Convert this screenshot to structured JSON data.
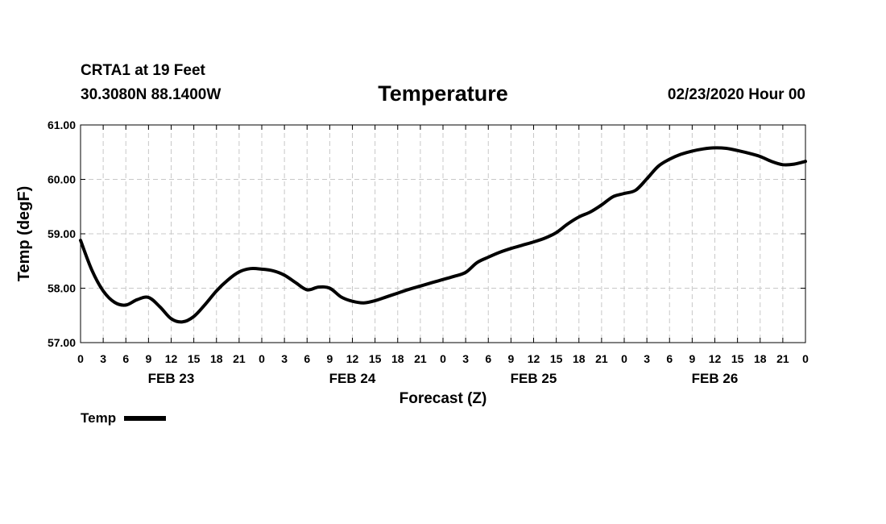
{
  "header": {
    "station": "CRTA1 at 19 Feet",
    "location": "30.3080N 88.1400W",
    "title": "Temperature",
    "run_time": "02/23/2020 Hour 00"
  },
  "chart_data": {
    "type": "line",
    "title": "Temperature",
    "xlabel": "Forecast (Z)",
    "ylabel": "Temp (degF)",
    "ylim": [
      57.0,
      61.0
    ],
    "y_ticks": [
      "57.00",
      "58.00",
      "59.00",
      "60.00",
      "61.00"
    ],
    "xlim": [
      0,
      96
    ],
    "x_ticks": [
      "0",
      "3",
      "6",
      "9",
      "12",
      "15",
      "18",
      "21",
      "0",
      "3",
      "6",
      "9",
      "12",
      "15",
      "18",
      "21",
      "0",
      "3",
      "6",
      "9",
      "12",
      "15",
      "18",
      "21",
      "0",
      "3",
      "6",
      "9",
      "12",
      "15",
      "18",
      "21",
      "0"
    ],
    "day_labels": [
      {
        "label": "FEB 23",
        "hour": 12
      },
      {
        "label": "FEB 24",
        "hour": 36
      },
      {
        "label": "FEB 25",
        "hour": 60
      },
      {
        "label": "FEB 26",
        "hour": 84
      }
    ],
    "grid": true,
    "legend_position": "bottom-left",
    "series": [
      {
        "name": "Temp",
        "color": "#000000",
        "x": [
          0,
          1.5,
          3,
          4.5,
          6,
          7.5,
          9,
          10.5,
          12,
          13.5,
          15,
          16.5,
          18,
          19.5,
          21,
          22.5,
          24,
          25.5,
          27,
          28.5,
          30,
          31.5,
          33,
          34.5,
          36,
          37.5,
          39,
          40.5,
          42,
          43.5,
          45,
          46.5,
          48,
          49.5,
          51,
          52.5,
          54,
          55.5,
          57,
          58.5,
          60,
          61.5,
          63,
          64.5,
          66,
          67.5,
          69,
          70.5,
          72,
          73.5,
          75,
          76.5,
          78,
          79.5,
          81,
          82.5,
          84,
          85.5,
          87,
          88.5,
          90,
          91.5,
          93,
          94.5,
          96
        ],
        "values": [
          58.88,
          58.33,
          57.95,
          57.74,
          57.69,
          57.79,
          57.83,
          57.66,
          57.44,
          57.38,
          57.48,
          57.7,
          57.95,
          58.15,
          58.3,
          58.36,
          58.35,
          58.32,
          58.24,
          58.1,
          57.97,
          58.02,
          58.0,
          57.84,
          57.76,
          57.73,
          57.77,
          57.84,
          57.91,
          57.98,
          58.04,
          58.1,
          58.16,
          58.22,
          58.29,
          58.47,
          58.57,
          58.66,
          58.73,
          58.79,
          58.85,
          58.92,
          59.02,
          59.18,
          59.31,
          59.4,
          59.53,
          59.68,
          59.74,
          59.8,
          60.01,
          60.24,
          60.37,
          60.46,
          60.52,
          60.56,
          60.58,
          60.57,
          60.53,
          60.48,
          60.42,
          60.33,
          60.27,
          60.28,
          60.33
        ]
      }
    ]
  },
  "legend": {
    "label": "Temp"
  }
}
